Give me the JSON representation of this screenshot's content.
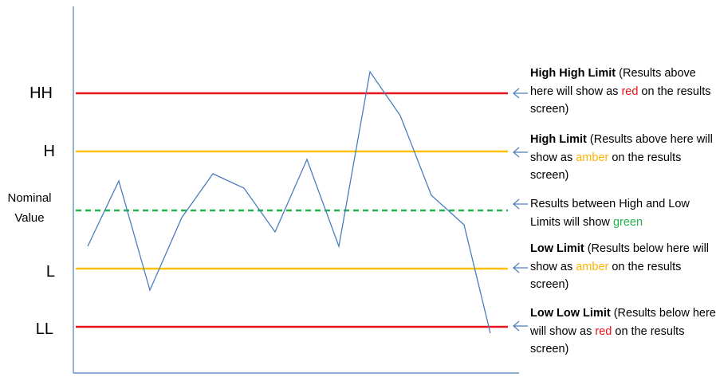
{
  "levels": {
    "hh": {
      "label": "HH",
      "color": "#e8141c"
    },
    "h": {
      "label": "H",
      "color": "#ffc000"
    },
    "nominal": {
      "label_line1": "Nominal",
      "label_line2": "Value",
      "color": "#22b14c",
      "style": "dashed"
    },
    "l": {
      "label": "L",
      "color": "#ffc000"
    },
    "ll": {
      "label": "LL",
      "color": "#e8141c"
    }
  },
  "series": {
    "color": "#4a7ebb",
    "points": [
      [
        110,
        309
      ],
      [
        149,
        227
      ],
      [
        188,
        364
      ],
      [
        228,
        273
      ],
      [
        267,
        218
      ],
      [
        306,
        236
      ],
      [
        345,
        291
      ],
      [
        385,
        200
      ],
      [
        425,
        309
      ],
      [
        464,
        90
      ],
      [
        502,
        145
      ],
      [
        541,
        245
      ],
      [
        582,
        282
      ],
      [
        615,
        418
      ]
    ]
  },
  "notes": {
    "hh": {
      "title": "High High Limit",
      "pre": " (Results above here will show as ",
      "color_word": "red",
      "post": " on the results screen)"
    },
    "h": {
      "title": "High Limit",
      "pre": " (Results above here will show as ",
      "color_word": "amber",
      "post": " on the results screen)"
    },
    "nominal": {
      "pre": "Results between High and Low Limits will show ",
      "color_word": "green"
    },
    "l": {
      "title": "Low Limit",
      "pre": " (Results below here will show as ",
      "color_word": "amber",
      "post": " on the results screen)"
    },
    "ll": {
      "title": "Low Low Limit",
      "pre": " (Results below here will show as ",
      "color_word": "red",
      "post": " on the results screen)"
    }
  },
  "arrow_icon": "left-arrow-icon",
  "axis_color": "#4a7ebb"
}
